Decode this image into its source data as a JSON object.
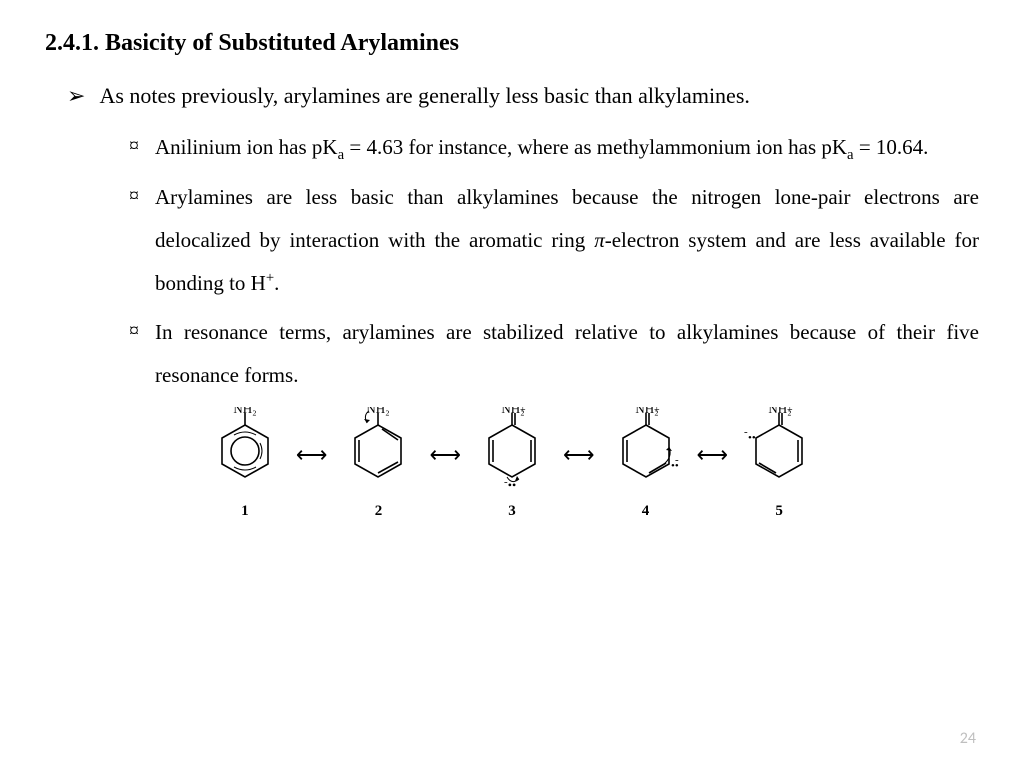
{
  "heading": "2.4.1. Basicity of Substituted Arylamines",
  "bullets": {
    "l1_marker": "➢",
    "l2_marker": "¤",
    "l1_text": "As notes previously, arylamines are generally less basic than alkylamines.",
    "l2_items": [
      "Anilinium ion has pK<span class='sub'>a</span> = 4.63 for instance, where as methylammonium ion has pK<span class='sub'>a</span> = 10.64.",
      "Arylamines are less basic than alkylamines because the nitrogen lone-pair electrons are delocalized by interaction with the aromatic ring <span class='pi'>π</span>-electron system and are less available for bonding to H<span class='sup'>+</span>.",
      "In resonance terms, arylamines are stabilized relative to alkylamines because of their five resonance forms."
    ]
  },
  "diagram": {
    "labels": [
      "1",
      "2",
      "3",
      "4",
      "5"
    ],
    "arrow_glyph": "⟷",
    "nh2_labels": [
      "N̈H₂",
      "N̈H₂",
      "NH₂",
      "NH₂",
      "NH₂"
    ],
    "charges": [
      "",
      "",
      "+",
      "+",
      "+"
    ],
    "colors": {
      "stroke": "#000000",
      "fill": "#ffffff",
      "text": "#000000"
    },
    "stroke_width": 1.6,
    "ring_radius": 26
  },
  "page_number": "24",
  "style": {
    "bg": "#ffffff",
    "text_color": "#000000",
    "pagenum_color": "#bfbfbf",
    "heading_fontsize": 24,
    "body_fontsize": 22,
    "sub_fontsize": 21
  }
}
